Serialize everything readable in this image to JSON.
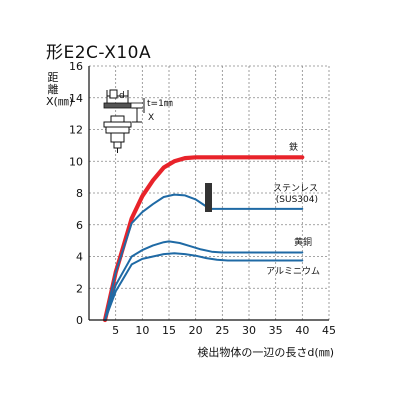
{
  "chart_data": {
    "type": "line",
    "title": "形E2C-X10A",
    "ylabel": "距離X(㎜)",
    "xlabel": "検出物体の一辺の長さd(㎜)",
    "xlim": [
      0,
      45
    ],
    "ylim": [
      0,
      16
    ],
    "xticks": [
      0,
      5,
      10,
      15,
      20,
      25,
      30,
      35,
      40,
      45
    ],
    "yticks": [
      0,
      2,
      4,
      6,
      8,
      10,
      12,
      14,
      16
    ],
    "grid": true,
    "colors": {
      "iron": "#e8232a",
      "other": "#1f6aa5",
      "grid": "#888888"
    },
    "inset": {
      "d_label": "d",
      "x_label": "X",
      "t_label": "t=1㎜"
    },
    "series": [
      {
        "name": "鉄",
        "x": [
          3,
          5,
          8,
          10,
          12,
          14,
          16,
          18,
          20,
          22,
          25,
          30,
          35,
          40
        ],
        "y": [
          0,
          3.0,
          6.4,
          7.8,
          8.8,
          9.6,
          10.0,
          10.2,
          10.25,
          10.25,
          10.25,
          10.25,
          10.25,
          10.25
        ]
      },
      {
        "name": "ステンレス",
        "subname": "(SUS304)",
        "x": [
          3,
          5,
          8,
          10,
          12,
          14,
          16,
          18,
          20,
          22,
          23,
          25,
          30,
          35,
          40
        ],
        "y": [
          0,
          3.0,
          6.1,
          6.8,
          7.3,
          7.75,
          7.9,
          7.85,
          7.6,
          7.15,
          7.0,
          7.0,
          7.0,
          7.0,
          7.0
        ]
      },
      {
        "name": "黄銅",
        "x": [
          3,
          5,
          8,
          10,
          12,
          14,
          15,
          17,
          19,
          21,
          23,
          25,
          30,
          35,
          40
        ],
        "y": [
          0,
          2.2,
          4.0,
          4.4,
          4.7,
          4.9,
          4.95,
          4.85,
          4.65,
          4.45,
          4.3,
          4.25,
          4.25,
          4.25,
          4.25
        ]
      },
      {
        "name": "アルミニウム",
        "x": [
          3,
          5,
          8,
          10,
          12,
          14,
          16,
          18,
          20,
          22,
          24,
          26,
          30,
          35,
          40
        ],
        "y": [
          0,
          1.8,
          3.5,
          3.85,
          4.0,
          4.15,
          4.2,
          4.15,
          4.05,
          3.9,
          3.8,
          3.75,
          3.75,
          3.75,
          3.75
        ]
      }
    ]
  }
}
